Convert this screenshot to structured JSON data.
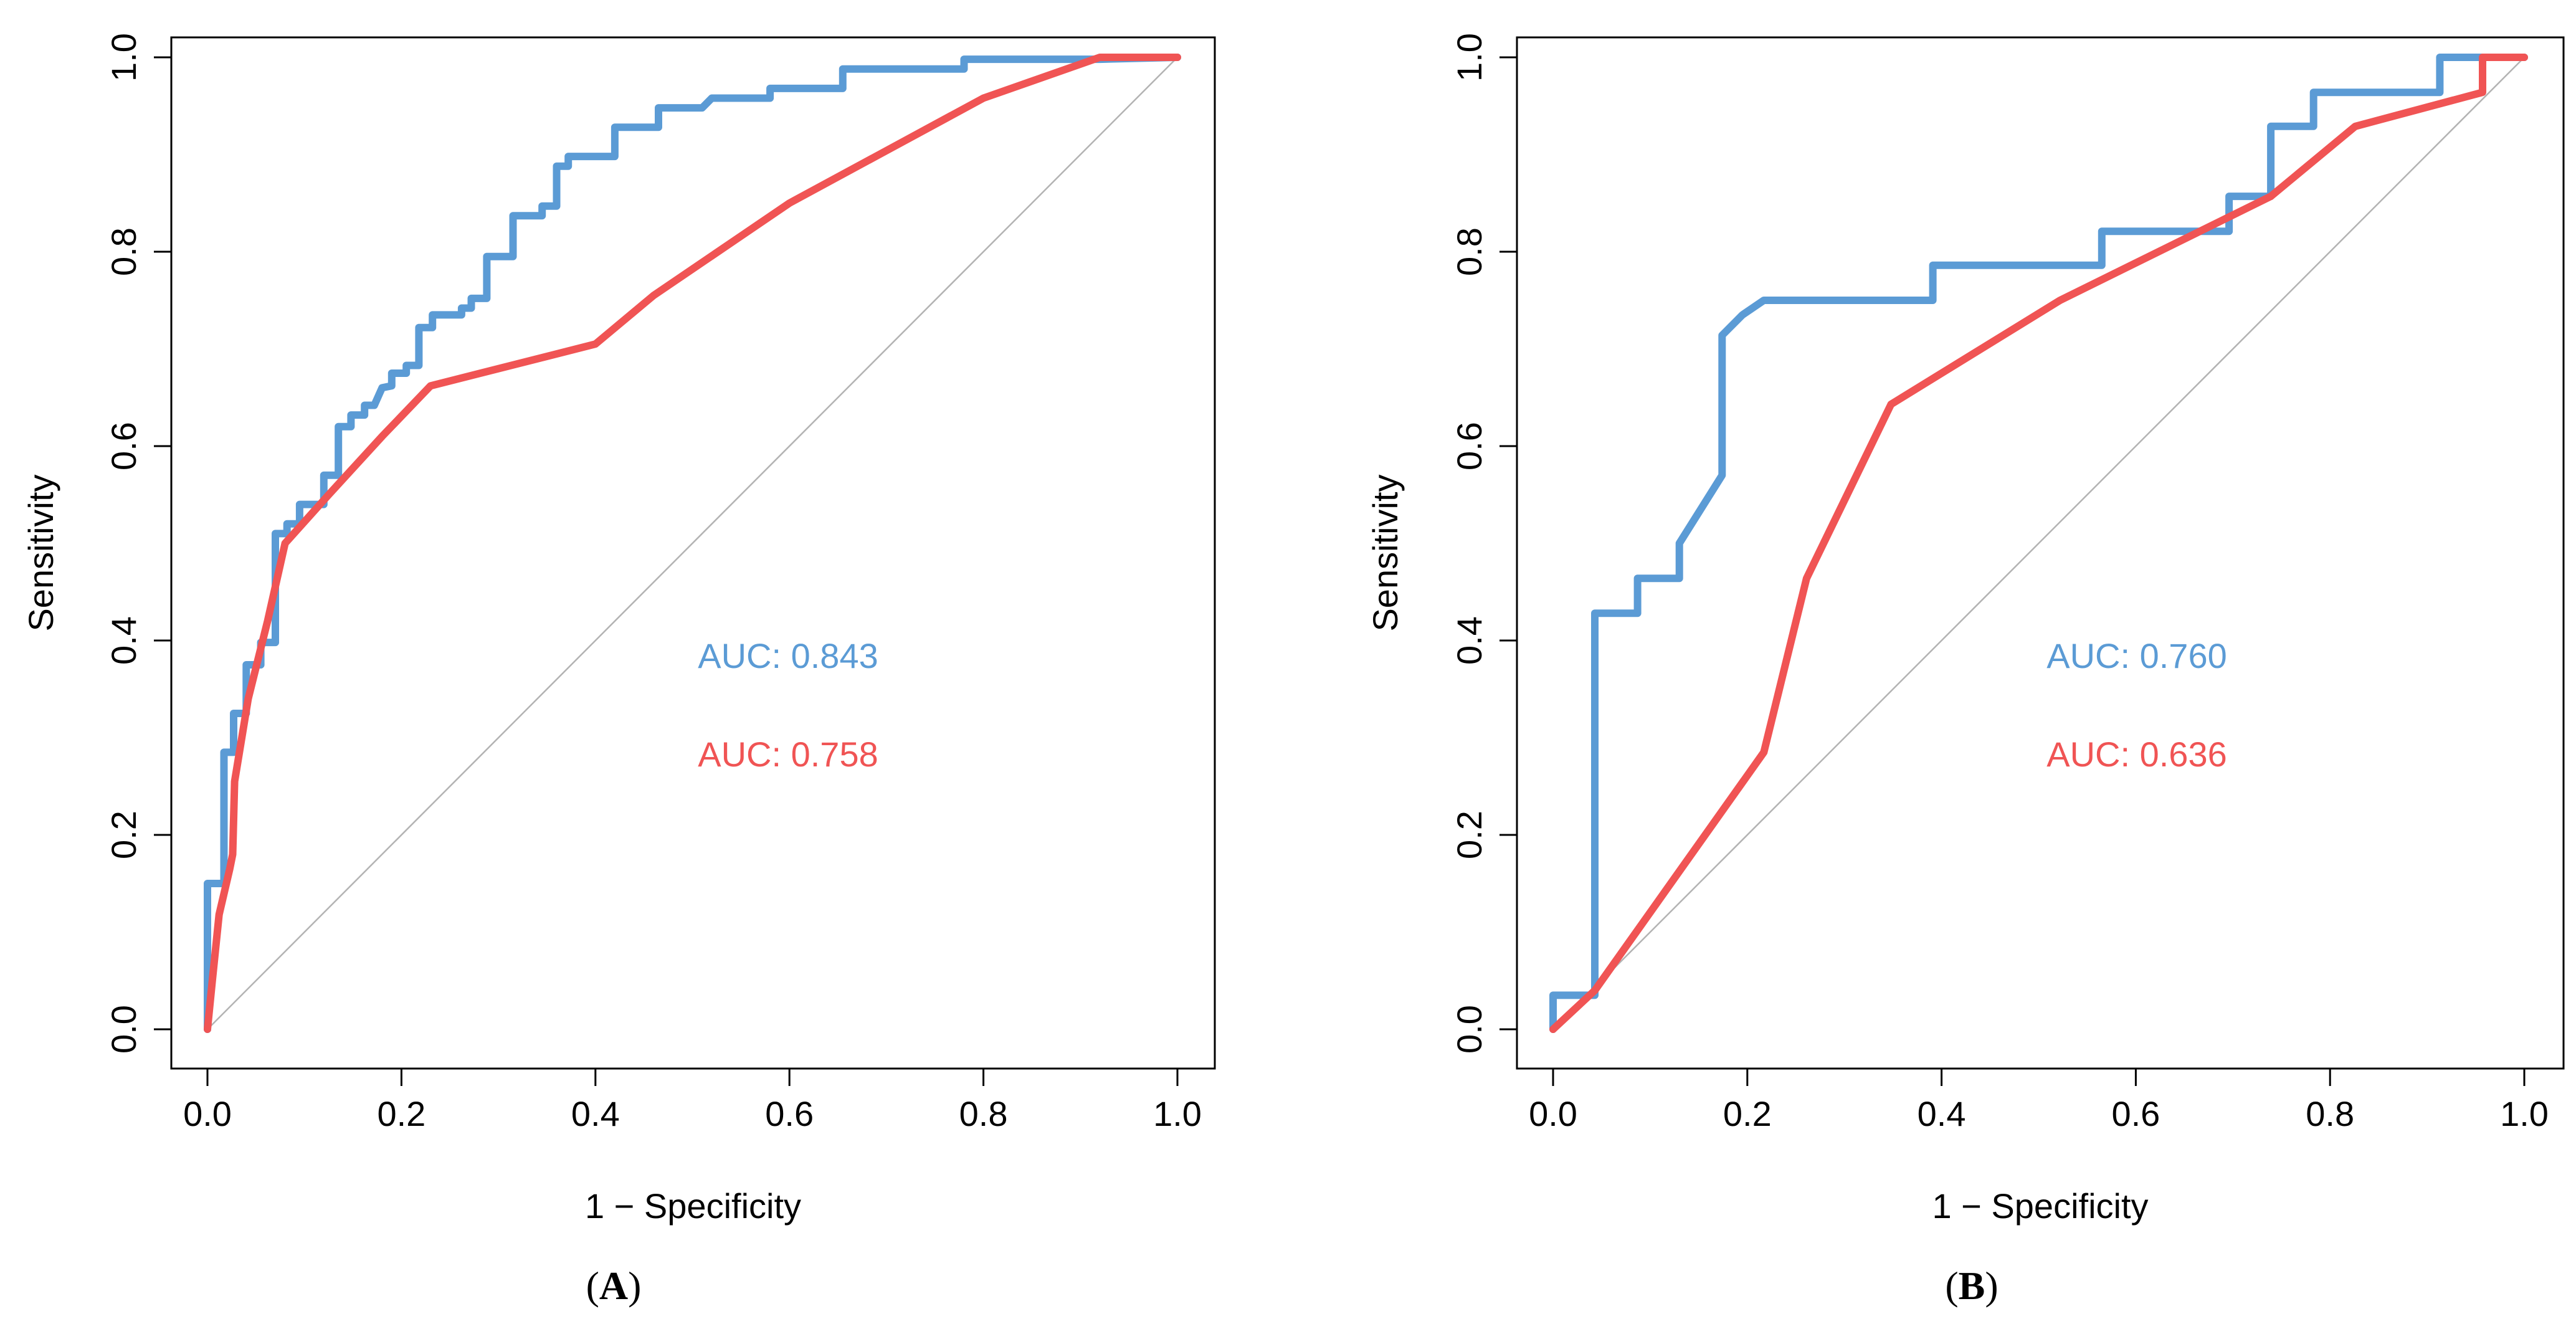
{
  "chart_data": [
    {
      "type": "line",
      "panel_label": "A",
      "xlabel": "1 − Specificity",
      "ylabel": "Sensitivity",
      "xlim": [
        0,
        1
      ],
      "ylim": [
        0,
        1
      ],
      "x_ticks": [
        "0.0",
        "0.2",
        "0.4",
        "0.6",
        "0.8",
        "1.0"
      ],
      "y_ticks": [
        "0.0",
        "0.2",
        "0.4",
        "0.6",
        "0.8",
        "1.0"
      ],
      "reference_line": {
        "from": [
          0,
          0
        ],
        "to": [
          1,
          1
        ],
        "color": "#b3b3b3"
      },
      "series": [
        {
          "name": "AUC: 0.843",
          "auc_label": "AUC: 0.843",
          "color": "#5b9bd5",
          "points": [
            [
              0,
              0
            ],
            [
              0,
              0.15
            ],
            [
              0.017,
              0.15
            ],
            [
              0.017,
              0.285
            ],
            [
              0.027,
              0.285
            ],
            [
              0.027,
              0.325
            ],
            [
              0.04,
              0.325
            ],
            [
              0.04,
              0.375
            ],
            [
              0.055,
              0.375
            ],
            [
              0.055,
              0.398
            ],
            [
              0.07,
              0.398
            ],
            [
              0.07,
              0.51
            ],
            [
              0.082,
              0.51
            ],
            [
              0.082,
              0.52
            ],
            [
              0.095,
              0.52
            ],
            [
              0.095,
              0.54
            ],
            [
              0.12,
              0.54
            ],
            [
              0.12,
              0.57
            ],
            [
              0.135,
              0.57
            ],
            [
              0.135,
              0.62
            ],
            [
              0.148,
              0.62
            ],
            [
              0.148,
              0.632
            ],
            [
              0.162,
              0.632
            ],
            [
              0.162,
              0.642
            ],
            [
              0.172,
              0.642
            ],
            [
              0.18,
              0.66
            ],
            [
              0.19,
              0.662
            ],
            [
              0.19,
              0.675
            ],
            [
              0.205,
              0.675
            ],
            [
              0.205,
              0.683
            ],
            [
              0.218,
              0.683
            ],
            [
              0.218,
              0.722
            ],
            [
              0.232,
              0.722
            ],
            [
              0.232,
              0.735
            ],
            [
              0.262,
              0.735
            ],
            [
              0.262,
              0.742
            ],
            [
              0.272,
              0.742
            ],
            [
              0.272,
              0.752
            ],
            [
              0.288,
              0.752
            ],
            [
              0.288,
              0.795
            ],
            [
              0.315,
              0.795
            ],
            [
              0.315,
              0.837
            ],
            [
              0.345,
              0.837
            ],
            [
              0.345,
              0.847
            ],
            [
              0.36,
              0.847
            ],
            [
              0.36,
              0.888
            ],
            [
              0.372,
              0.888
            ],
            [
              0.372,
              0.898
            ],
            [
              0.42,
              0.898
            ],
            [
              0.42,
              0.928
            ],
            [
              0.465,
              0.928
            ],
            [
              0.465,
              0.948
            ],
            [
              0.51,
              0.948
            ],
            [
              0.52,
              0.958
            ],
            [
              0.58,
              0.958
            ],
            [
              0.58,
              0.968
            ],
            [
              0.655,
              0.968
            ],
            [
              0.655,
              0.988
            ],
            [
              0.78,
              0.988
            ],
            [
              0.78,
              0.998
            ],
            [
              0.92,
              0.998
            ],
            [
              1,
              1
            ]
          ]
        },
        {
          "name": "AUC: 0.758",
          "auc_label": "AUC: 0.758",
          "color": "#f05454",
          "points": [
            [
              0,
              0
            ],
            [
              0.005,
              0.05
            ],
            [
              0.012,
              0.118
            ],
            [
              0.023,
              0.165
            ],
            [
              0.026,
              0.18
            ],
            [
              0.028,
              0.255
            ],
            [
              0.042,
              0.34
            ],
            [
              0.062,
              0.42
            ],
            [
              0.08,
              0.5
            ],
            [
              0.125,
              0.55
            ],
            [
              0.18,
              0.61
            ],
            [
              0.23,
              0.662
            ],
            [
              0.4,
              0.705
            ],
            [
              0.46,
              0.755
            ],
            [
              0.6,
              0.85
            ],
            [
              0.8,
              0.958
            ],
            [
              0.92,
              1.0
            ],
            [
              1,
              1
            ]
          ]
        }
      ]
    },
    {
      "type": "line",
      "panel_label": "B",
      "xlabel": "1 − Specificity",
      "ylabel": "Sensitivity",
      "xlim": [
        0,
        1
      ],
      "ylim": [
        0,
        1
      ],
      "x_ticks": [
        "0.0",
        "0.2",
        "0.4",
        "0.6",
        "0.8",
        "1.0"
      ],
      "y_ticks": [
        "0.0",
        "0.2",
        "0.4",
        "0.6",
        "0.8",
        "1.0"
      ],
      "reference_line": {
        "from": [
          0,
          0
        ],
        "to": [
          1,
          1
        ],
        "color": "#b3b3b3"
      },
      "series": [
        {
          "name": "AUC: 0.760",
          "auc_label": "AUC: 0.760",
          "color": "#5b9bd5",
          "points": [
            [
              0,
              0
            ],
            [
              0,
              0.035
            ],
            [
              0.043,
              0.035
            ],
            [
              0.043,
              0.428
            ],
            [
              0.087,
              0.428
            ],
            [
              0.087,
              0.464
            ],
            [
              0.13,
              0.464
            ],
            [
              0.13,
              0.5
            ],
            [
              0.152,
              0.535
            ],
            [
              0.174,
              0.57
            ],
            [
              0.174,
              0.714
            ],
            [
              0.195,
              0.735
            ],
            [
              0.217,
              0.75
            ],
            [
              0.391,
              0.75
            ],
            [
              0.391,
              0.786
            ],
            [
              0.565,
              0.786
            ],
            [
              0.565,
              0.821
            ],
            [
              0.696,
              0.821
            ],
            [
              0.696,
              0.857
            ],
            [
              0.739,
              0.857
            ],
            [
              0.739,
              0.929
            ],
            [
              0.783,
              0.929
            ],
            [
              0.783,
              0.964
            ],
            [
              0.913,
              0.964
            ],
            [
              0.913,
              1.0
            ],
            [
              0.957,
              1.0
            ],
            [
              1,
              1
            ]
          ]
        },
        {
          "name": "AUC: 0.636",
          "auc_label": "AUC: 0.636",
          "color": "#f05454",
          "points": [
            [
              0,
              0
            ],
            [
              0.043,
              0.04
            ],
            [
              0.217,
              0.285
            ],
            [
              0.261,
              0.464
            ],
            [
              0.348,
              0.643
            ],
            [
              0.522,
              0.75
            ],
            [
              0.739,
              0.857
            ],
            [
              0.826,
              0.929
            ],
            [
              0.957,
              0.964
            ],
            [
              0.957,
              1.0
            ],
            [
              1,
              1
            ]
          ]
        }
      ]
    }
  ]
}
